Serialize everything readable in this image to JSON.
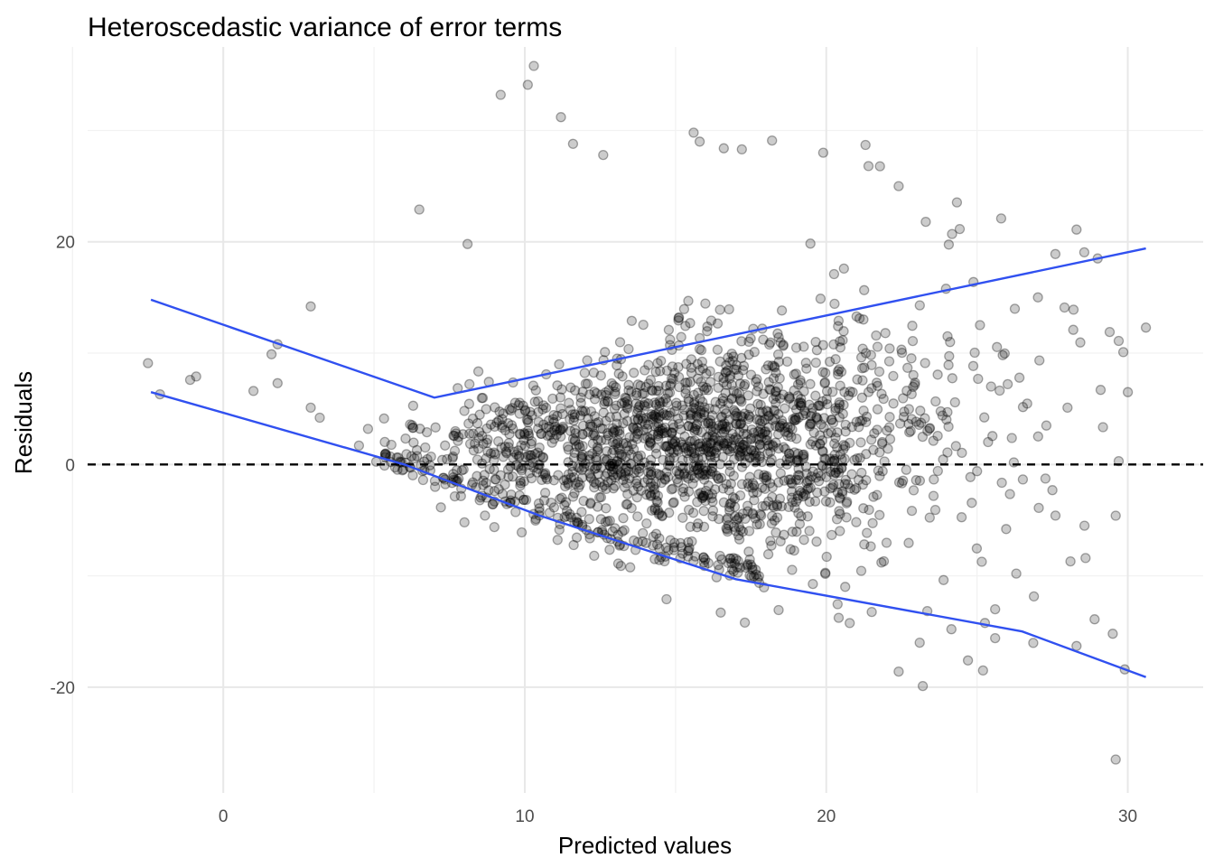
{
  "chart_data": {
    "type": "scatter",
    "title": "Heteroscedastic variance of error terms",
    "xlabel": "Predicted values",
    "ylabel": "Residuals",
    "xlim": [
      -4.5,
      32.5
    ],
    "ylim": [
      -29.5,
      37.5
    ],
    "x_ticks": [
      0,
      10,
      20,
      30
    ],
    "y_ticks": [
      -20,
      0,
      20
    ],
    "x_tick_labels": [
      "0",
      "10",
      "20",
      "30"
    ],
    "y_tick_labels": [
      "-20",
      "0",
      "20"
    ],
    "grid": true,
    "reference_line": {
      "y": 0,
      "style": "dashed",
      "color": "#000000"
    },
    "quantile_lines": {
      "color": "#3050f0",
      "upper": {
        "x": [
          -2.4,
          7.0,
          30.6
        ],
        "y": [
          14.8,
          6.0,
          19.4
        ]
      },
      "lower": {
        "x": [
          -2.4,
          6.0,
          10.5,
          17.0,
          26.5,
          30.6
        ],
        "y": [
          6.5,
          0.0,
          -4.6,
          -10.3,
          -15.0,
          -19.1
        ]
      }
    },
    "points": {
      "n_dense": 1700,
      "marker_color": "rgba(0,0,0,0.2)",
      "sparse": [
        [
          -2.5,
          9.1
        ],
        [
          -2.1,
          6.3
        ],
        [
          -1.1,
          7.6
        ],
        [
          -0.9,
          7.9
        ],
        [
          1.0,
          6.6
        ],
        [
          1.6,
          9.9
        ],
        [
          1.8,
          10.8
        ],
        [
          1.8,
          7.3
        ],
        [
          2.9,
          14.2
        ],
        [
          2.9,
          5.1
        ],
        [
          3.2,
          4.2
        ],
        [
          4.5,
          1.7
        ],
        [
          4.8,
          3.2
        ],
        [
          6.5,
          22.9
        ],
        [
          8.1,
          19.8
        ],
        [
          9.2,
          33.2
        ],
        [
          10.1,
          34.1
        ],
        [
          10.3,
          35.8
        ],
        [
          11.2,
          31.2
        ],
        [
          11.6,
          28.8
        ],
        [
          12.6,
          27.8
        ],
        [
          15.6,
          29.8
        ],
        [
          15.8,
          29.0
        ],
        [
          16.6,
          28.4
        ],
        [
          17.2,
          28.3
        ],
        [
          18.2,
          29.1
        ],
        [
          19.9,
          28.0
        ],
        [
          21.3,
          28.7
        ],
        [
          21.4,
          26.8
        ],
        [
          22.4,
          25.0
        ],
        [
          23.3,
          21.8
        ],
        [
          25.8,
          22.1
        ],
        [
          27.6,
          18.9
        ],
        [
          28.3,
          21.1
        ],
        [
          27.9,
          14.1
        ],
        [
          28.2,
          13.9
        ],
        [
          29.4,
          11.9
        ],
        [
          29.7,
          11.1
        ],
        [
          30.0,
          6.5
        ],
        [
          30.6,
          12.3
        ],
        [
          29.0,
          18.5
        ],
        [
          29.1,
          6.7
        ],
        [
          28.0,
          5.1
        ],
        [
          27.3,
          3.5
        ],
        [
          27.5,
          -2.3
        ],
        [
          28.1,
          -8.7
        ],
        [
          28.6,
          -8.4
        ],
        [
          28.3,
          -16.3
        ],
        [
          28.9,
          -13.9
        ],
        [
          29.5,
          -15.2
        ],
        [
          29.9,
          -18.4
        ],
        [
          29.6,
          -4.6
        ],
        [
          29.7,
          0.3
        ],
        [
          29.6,
          -26.5
        ],
        [
          23.2,
          -19.9
        ],
        [
          22.4,
          -18.6
        ],
        [
          24.7,
          -17.6
        ],
        [
          25.2,
          -18.5
        ],
        [
          23.1,
          -16.0
        ],
        [
          25.6,
          -13.0
        ],
        [
          25.6,
          -15.6
        ],
        [
          26.3,
          -9.8
        ],
        [
          8.0,
          -5.2
        ],
        [
          9.9,
          -6.1
        ],
        [
          13.1,
          -8.9
        ],
        [
          12.3,
          -8.2
        ],
        [
          16.5,
          -13.3
        ],
        [
          17.3,
          -14.2
        ],
        [
          14.7,
          -12.1
        ]
      ]
    }
  }
}
